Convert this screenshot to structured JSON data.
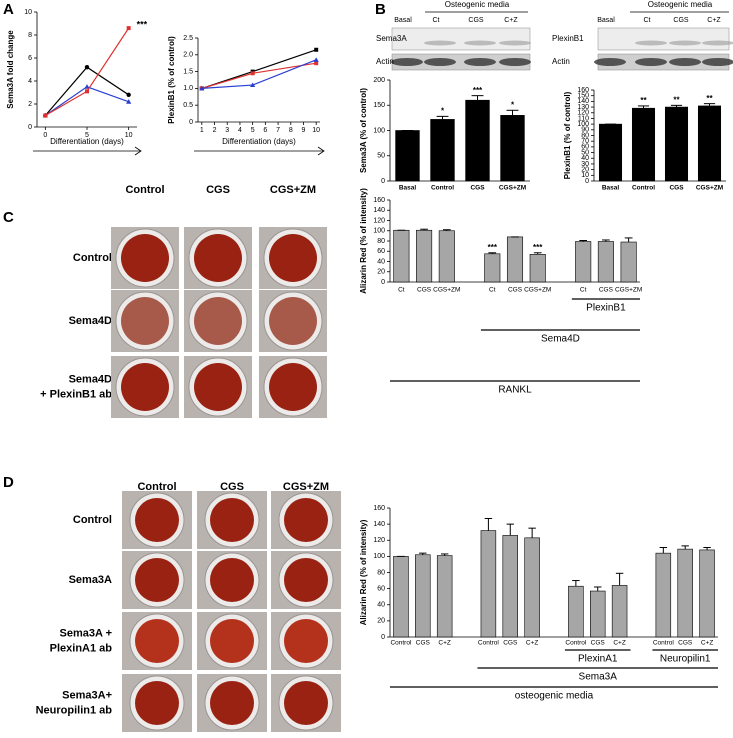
{
  "panel_labels": [
    "A",
    "B",
    "C",
    "D"
  ],
  "chart_data": [
    {
      "type": "line",
      "y_label": "Sema3A fold change",
      "x_label": "Differentiation (days)",
      "x": [
        0,
        5,
        10
      ],
      "xlim": [
        -1,
        11
      ],
      "xticks": [
        0,
        5,
        10
      ],
      "ylim": [
        0,
        10
      ],
      "yticks": [
        0,
        2,
        4,
        6,
        8,
        10
      ],
      "series": [
        {
          "color": "#000000",
          "marker": "circle",
          "values": [
            1,
            5.2,
            2.8
          ]
        },
        {
          "color": "#2a3fd0",
          "marker": "triangle",
          "values": [
            1,
            3.5,
            2.2
          ]
        },
        {
          "color": "#e03030",
          "marker": "square",
          "values": [
            1,
            3.1,
            8.6
          ]
        }
      ],
      "annotations": [
        "***"
      ]
    },
    {
      "type": "line",
      "y_label": "PlexinB1 (% of control)",
      "x_label": "Differentiation (days)",
      "x": [
        1,
        5,
        10
      ],
      "xlim": [
        0.7,
        10.3
      ],
      "xticks": [
        1,
        2,
        3,
        4,
        5,
        6,
        7,
        8,
        9,
        10
      ],
      "ylim": [
        0,
        2.5
      ],
      "yticks": [
        0,
        0.5,
        {
          "value": 1,
          "label": "1.0"
        },
        1.5,
        {
          "value": 2,
          "label": "2.0"
        },
        2.5
      ],
      "series": [
        {
          "color": "#000000",
          "marker": "square",
          "values": [
            1,
            1.5,
            2.15
          ]
        },
        {
          "color": "#e03030",
          "marker": "square",
          "values": [
            1,
            1.45,
            1.75
          ]
        },
        {
          "color": "#2a3fd0",
          "marker": "triangle",
          "values": [
            1,
            1.1,
            1.85
          ]
        }
      ]
    },
    {
      "type": "bar",
      "y_label": "Sema3A (% of control)",
      "categories": [
        "Basal",
        "Control",
        "CGS",
        "CGS+ZM"
      ],
      "values": [
        100,
        122,
        160,
        130
      ],
      "errors": [
        0,
        6,
        9,
        10
      ],
      "significance": [
        null,
        "*",
        "***",
        "*"
      ],
      "color": "#000000",
      "ylim": [
        0,
        200
      ],
      "yticks": [
        0,
        50,
        100,
        150,
        200
      ]
    },
    {
      "type": "bar",
      "y_label": "PlexinB1 (% of control)",
      "categories": [
        "Basal",
        "Control",
        "CGS",
        "CGS+ZM"
      ],
      "values": [
        100,
        128,
        130,
        132
      ],
      "errors": [
        0,
        4,
        3,
        4
      ],
      "significance": [
        null,
        "**",
        "**",
        "**"
      ],
      "color": "#000000",
      "ylim": [
        0,
        160
      ],
      "yticks": [
        0,
        10,
        20,
        30,
        40,
        50,
        60,
        70,
        80,
        90,
        100,
        110,
        120,
        130,
        140,
        150,
        160
      ]
    },
    {
      "type": "bar",
      "y_label": "Alizarin Red (% of intensity)",
      "categories": [
        "Ct",
        "CGS",
        "CGS+ZM",
        "Ct",
        "CGS",
        "CGS+ZM",
        "Ct",
        "CGS",
        "CGS+ZM"
      ],
      "values": [
        101,
        101,
        100,
        55,
        88,
        54,
        79,
        79,
        78
      ],
      "errors": [
        0,
        2,
        2,
        2,
        0,
        3,
        2,
        3,
        8
      ],
      "significance": [
        null,
        null,
        null,
        "***",
        null,
        "***",
        null,
        null,
        null
      ],
      "groups": [
        "PlexinB1",
        "Sema4D",
        "RANKL"
      ],
      "color": "#a6a6a6",
      "ylim": [
        0,
        160
      ],
      "yticks": [
        0,
        20,
        40,
        60,
        80,
        100,
        120,
        140,
        160
      ]
    },
    {
      "type": "bar",
      "y_label": "Alizarin Red (% of intensity)",
      "categories": [
        "Control",
        "CGS",
        "C+Z",
        "Control",
        "CGS",
        "C+Z",
        "Control",
        "CGS",
        "C+Z",
        "Control",
        "CGS",
        "C+Z"
      ],
      "values": [
        100,
        102,
        101,
        132,
        126,
        123,
        63,
        57,
        64,
        104,
        109,
        108
      ],
      "errors": [
        0,
        2,
        2,
        15,
        14,
        12,
        7,
        5,
        15,
        7,
        4,
        3
      ],
      "groups": [
        "PlexinA1",
        "Neuropilin1",
        "Sema3A",
        "osteogenic media"
      ],
      "color": "#a6a6a6",
      "ylim": [
        0,
        160
      ],
      "yticks": [
        0,
        20,
        40,
        60,
        80,
        100,
        120,
        140,
        160
      ]
    }
  ],
  "blots": [
    {
      "header": "Osteogenic media",
      "lanes": [
        "Basal",
        "Ct",
        "CGS",
        "C+Z"
      ],
      "rows": [
        "Sema3A",
        "Actin"
      ]
    },
    {
      "header": "Osteogenic media",
      "lanes": [
        "Basal",
        "Ct",
        "CGS",
        "C+Z"
      ],
      "rows": [
        "PlexinB1",
        "Actin"
      ]
    }
  ],
  "wells": [
    {
      "columns": [
        "Control",
        "CGS",
        "CGS+ZM"
      ],
      "rows": [
        "Control",
        "Sema4D",
        [
          "Sema4D",
          "+ PlexinB1 ab"
        ]
      ]
    },
    {
      "columns": [
        "Control",
        "CGS",
        "CGS+ZM"
      ],
      "rows": [
        "Control",
        "Sema3A",
        [
          "Sema3A +",
          "PlexinA1 ab"
        ],
        [
          "Sema3A+",
          "Neuropilin1 ab"
        ]
      ]
    }
  ]
}
